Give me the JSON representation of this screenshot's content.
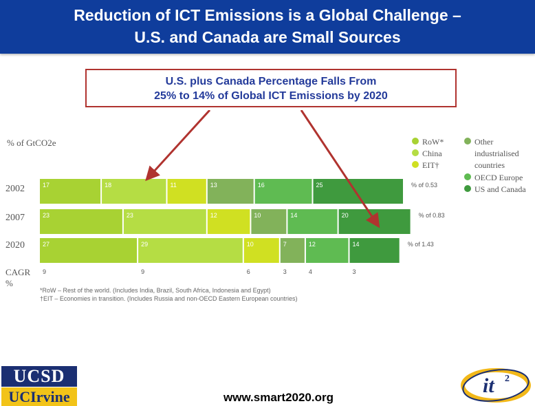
{
  "slide": {
    "title_line1": "Reduction of ICT Emissions is a Global Challenge –",
    "title_line2": "U.S. and Canada are Small Sources",
    "callout_line1": "U.S. plus Canada Percentage Falls From",
    "callout_line2": "25% to 14% of Global ICT Emissions by 2020",
    "footer_url": "www.smart2020.org",
    "logo_ucsd": "UCSD",
    "logo_uci": "UCIrvine",
    "logo_it2": "it"
  },
  "colors": {
    "title_bar": "#0f3d9c",
    "callout_border": "#b0332f",
    "callout_text": "#233a9a",
    "arrow": "#b0332f"
  },
  "chart_data": {
    "type": "bar",
    "orientation": "horizontal-stacked-percent",
    "ylabel": "% of GtCO2e",
    "categories": [
      "2002",
      "2007",
      "2020"
    ],
    "totals": [
      "% of 0.53",
      "% of 0.83",
      "% of 1.43"
    ],
    "series": [
      {
        "name": "RoW*",
        "color": "#a8d233",
        "values": [
          17,
          23,
          27
        ]
      },
      {
        "name": "China",
        "color": "#b5dd44",
        "values": [
          18,
          23,
          29
        ]
      },
      {
        "name": "EIT†",
        "color": "#d0e022",
        "values": [
          11,
          12,
          10
        ]
      },
      {
        "name": "Other industrialised countries",
        "color": "#82b25a",
        "values": [
          13,
          10,
          7
        ]
      },
      {
        "name": "OECD Europe",
        "color": "#5fbb52",
        "values": [
          16,
          14,
          12
        ]
      },
      {
        "name": "US and Canada",
        "color": "#3f9a3e",
        "values": [
          25,
          20,
          14
        ]
      }
    ],
    "cagr_label": "CAGR",
    "cagr_unit": "%",
    "cagr": [
      9,
      9,
      6,
      3,
      4,
      3
    ],
    "legend": {
      "col1": [
        "RoW*",
        "China",
        "EIT†"
      ],
      "col2_line1": "Other",
      "col2_line2": "industrialised",
      "col2_line3": "countries",
      "col2_items": [
        "OECD Europe",
        "US and Canada"
      ]
    },
    "footnote1": "*RoW – Rest of the world. (Includes India, Brazil, South Africa, Indonesia and Egypt)",
    "footnote2": "†EIT – Economies in transition. (Includes Russia and non-OECD Eastern European countries)"
  }
}
